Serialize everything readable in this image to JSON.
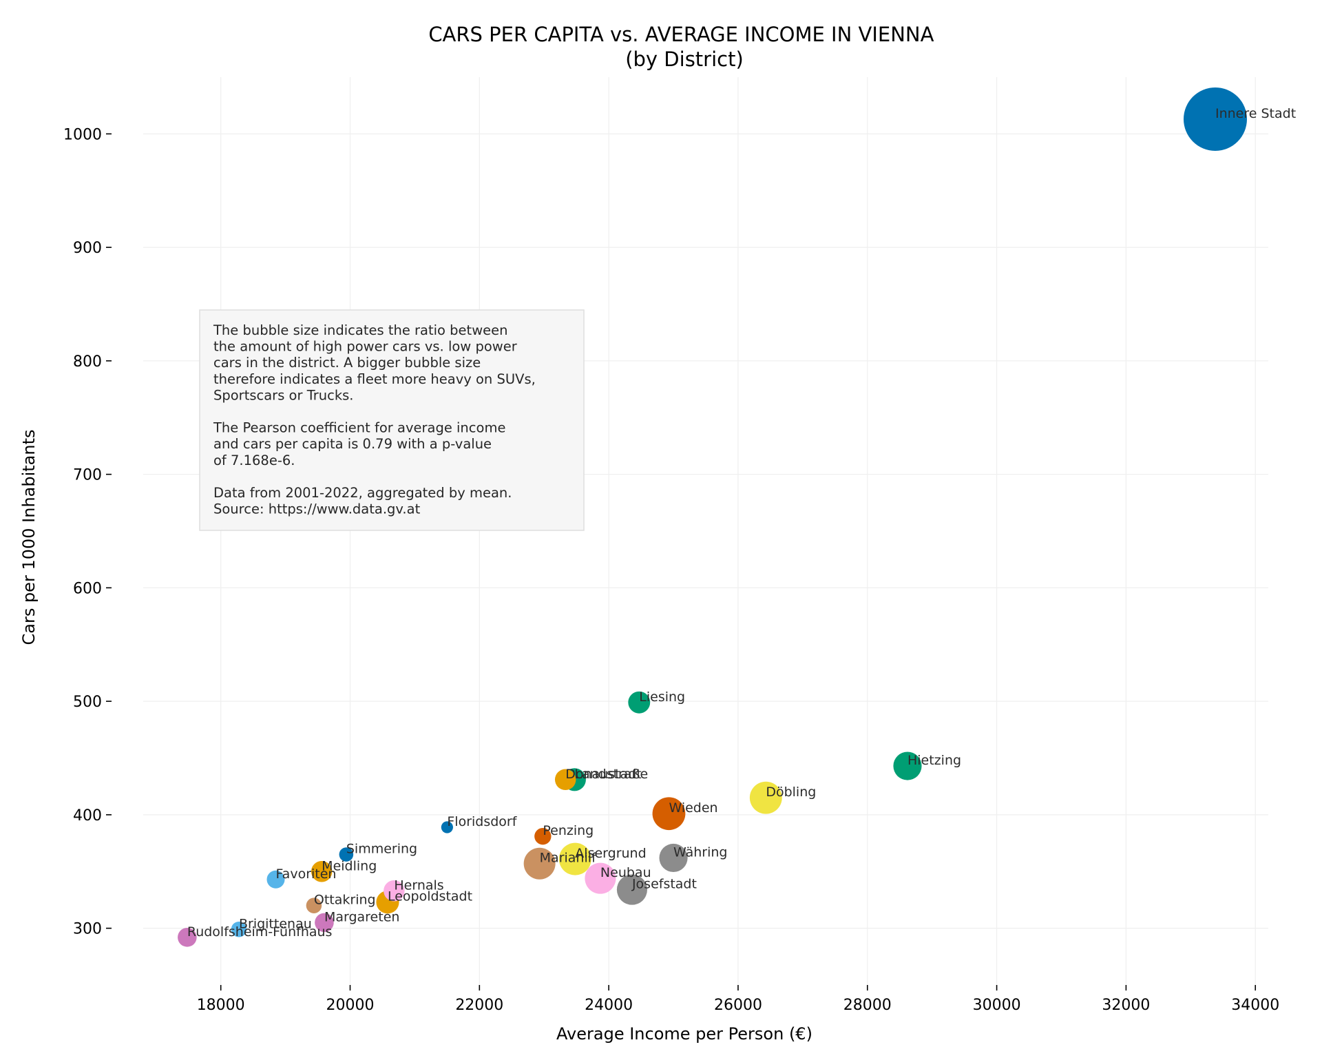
{
  "chart_data": {
    "type": "scatter",
    "title": [
      "CARS PER CAPITA vs. AVERAGE INCOME IN VIENNA",
      "(by District)"
    ],
    "xlabel": "Average Income per Person (€)",
    "ylabel": "Cars per 1000 Inhabitants",
    "xlim": [
      16800,
      34200
    ],
    "ylim": [
      250,
      1050
    ],
    "xticks": [
      18000,
      20000,
      22000,
      24000,
      26000,
      28000,
      30000,
      32000,
      34000
    ],
    "yticks": [
      300,
      400,
      500,
      600,
      700,
      800,
      900,
      1000
    ],
    "grid": true,
    "annotation": [
      "The bubble size indicates the ratio between",
      "the amount of high power cars vs. low power",
      "cars in the district. A bigger bubble size",
      "therefore indicates a fleet more heavy on SUVs,",
      "Sportscars or Trucks.",
      "",
      "The Pearson coefficient for average income",
      "and cars per capita is 0.79 with a p-value",
      "of 7.168e-6.",
      "",
      "Data from 2001-2022, aggregated by mean.",
      "Source: https://www.data.gv.at"
    ],
    "points": [
      {
        "label": "Innere Stadt",
        "x": 33380,
        "y": 1013,
        "size": 1.0,
        "color": "#0072b2"
      },
      {
        "label": "Liesing",
        "x": 24470,
        "y": 499,
        "size": 0.12,
        "color": "#009e73"
      },
      {
        "label": "Hietzing",
        "x": 28620,
        "y": 443,
        "size": 0.2,
        "color": "#009e73"
      },
      {
        "label": "Landstraße",
        "x": 23470,
        "y": 431,
        "size": 0.13,
        "color": "#009e73"
      },
      {
        "label": "Donaustadt",
        "x": 23330,
        "y": 431,
        "size": 0.11,
        "color": "#e69f00"
      },
      {
        "label": "Döbling",
        "x": 26430,
        "y": 415,
        "size": 0.26,
        "color": "#f0e442"
      },
      {
        "label": "Wieden",
        "x": 24930,
        "y": 401,
        "size": 0.27,
        "color": "#d55e00"
      },
      {
        "label": "Floridsdorf",
        "x": 21500,
        "y": 389,
        "size": 0.035,
        "color": "#0072b2"
      },
      {
        "label": "Penzing",
        "x": 22980,
        "y": 381,
        "size": 0.07,
        "color": "#d55e00"
      },
      {
        "label": "Simmering",
        "x": 19940,
        "y": 365,
        "size": 0.05,
        "color": "#0072b2"
      },
      {
        "label": "Währing",
        "x": 25000,
        "y": 362,
        "size": 0.2,
        "color": "#8c8c8c"
      },
      {
        "label": "Alsergrund",
        "x": 23480,
        "y": 361,
        "size": 0.26,
        "color": "#f0e442"
      },
      {
        "label": "Mariahilf",
        "x": 22930,
        "y": 357,
        "size": 0.25,
        "color": "#ca9161"
      },
      {
        "label": "Meidling",
        "x": 19560,
        "y": 350,
        "size": 0.11,
        "color": "#e69f00"
      },
      {
        "label": "Neubau",
        "x": 23870,
        "y": 344,
        "size": 0.24,
        "color": "#fbafe4"
      },
      {
        "label": "Favoriten",
        "x": 18850,
        "y": 343,
        "size": 0.08,
        "color": "#56b4e9"
      },
      {
        "label": "Josefstadt",
        "x": 24360,
        "y": 334,
        "size": 0.23,
        "color": "#8c8c8c"
      },
      {
        "label": "Hernals",
        "x": 20680,
        "y": 333,
        "size": 0.11,
        "color": "#fbafe4"
      },
      {
        "label": "Leopoldstadt",
        "x": 20580,
        "y": 323,
        "size": 0.13,
        "color": "#e69f00"
      },
      {
        "label": "Ottakring",
        "x": 19440,
        "y": 320,
        "size": 0.06,
        "color": "#ca9161"
      },
      {
        "label": "Margareten",
        "x": 19600,
        "y": 305,
        "size": 0.09,
        "color": "#cc78bc"
      },
      {
        "label": "Brigittenau",
        "x": 18280,
        "y": 299,
        "size": 0.06,
        "color": "#56b4e9"
      },
      {
        "label": "Rudolfsheim-Fünfhaus",
        "x": 17480,
        "y": 292,
        "size": 0.09,
        "color": "#cc78bc"
      }
    ]
  }
}
